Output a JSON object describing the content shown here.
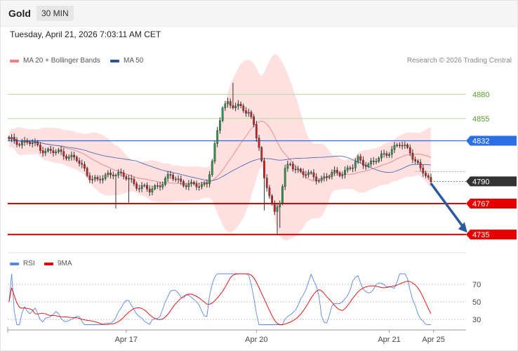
{
  "header": {
    "symbol": "Gold",
    "timeframe": "30 MIN"
  },
  "timestamp": "Tuesday, April 21, 2026 7:03:11 AM CET",
  "legend": {
    "bb_label": "MA 20 + Bollinger Bands",
    "ma50_label": "MA 50",
    "rsi_label": "RSI",
    "rsi_ma_label": "9MA"
  },
  "credit": "Research © 2026 Trading Central",
  "colors": {
    "bull": "#2e9e4a",
    "bear": "#d61f1f",
    "bands": "#ffd6d6",
    "ma20": "#f08080",
    "ma50": "#4a6bb5",
    "resistance": "#b5d99c",
    "pivot": "#2a6ee8",
    "support": "#e60000",
    "current": "#333333",
    "arrow": "#2a5a9c",
    "rsi": "#5b86e5",
    "rsi_ma": "#e60000"
  },
  "chart_data": [
    {
      "type": "candlestick",
      "x_ticks": [
        {
          "label": "Apr 17",
          "x": 45
        },
        {
          "label": "Apr 20",
          "x": 95
        },
        {
          "label": "Apr 21",
          "x": 146
        },
        {
          "label": "Apr 25",
          "x": 163
        }
      ],
      "ylim": [
        4722,
        4905
      ],
      "levels": [
        {
          "value": 4880,
          "label": "4880",
          "kind": "resistance"
        },
        {
          "value": 4855,
          "label": "4855",
          "kind": "resistance"
        },
        {
          "value": 4832,
          "label": "4832",
          "kind": "pivot"
        },
        {
          "value": 4790,
          "label": "4790",
          "kind": "current"
        },
        {
          "value": 4767,
          "label": "4767",
          "kind": "support"
        },
        {
          "value": 4735,
          "label": "4735",
          "kind": "support"
        }
      ],
      "projection": {
        "from": [
          162,
          4788
        ],
        "to": [
          176,
          4737
        ]
      }
    },
    {
      "type": "line",
      "series_labels": [
        "RSI",
        "9MA"
      ],
      "y_ticks": [
        70,
        50,
        30
      ],
      "ylim": [
        22,
        90
      ]
    }
  ]
}
